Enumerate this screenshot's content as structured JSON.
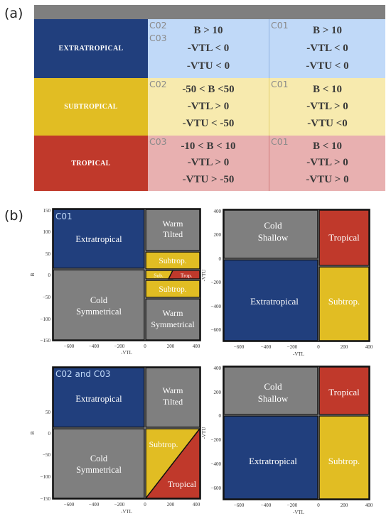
{
  "panel_a_label": "(a)",
  "panel_b_label": "(b)",
  "colors": {
    "extratropical": "#213f7d",
    "subtropical": "#e1bd23",
    "tropical": "#c0392b",
    "cold": "#7f7f7f",
    "ext_bg": "#c0d9f8",
    "sub_bg": "#f7eaae",
    "trop_bg": "#e8b0b0"
  },
  "table": {
    "rows": [
      {
        "label": "EXTRATROPICAL",
        "c2_codes": [
          "C02",
          "C03"
        ],
        "c2_conditions": [
          "B > 10",
          "-VTL < 0",
          "-VTU < 0"
        ],
        "c1_code": "C01",
        "c1_conditions": [
          "B > 10",
          "-VTL < 0",
          "-VTU < 0"
        ]
      },
      {
        "label": "SUBTROPICAL",
        "c2_codes": [
          "C02"
        ],
        "c2_conditions": [
          "-50 < B <50",
          "-VTL > 0",
          "-VTU < -50"
        ],
        "c1_code": "C01",
        "c1_conditions": [
          "B < 10",
          "-VTL > 0",
          "-VTU <0"
        ]
      },
      {
        "label": "TROPICAL",
        "c2_codes": [
          "C03"
        ],
        "c2_conditions": [
          "-10 < B < 10",
          "-VTL > 0",
          "-VTU > -50"
        ],
        "c1_code": "C01",
        "c1_conditions": [
          "B < 10",
          "-VTL > 0",
          "-VTU > 0"
        ]
      }
    ]
  },
  "plots": {
    "left_top": {
      "tag": "C01",
      "xlabel": "-VTL",
      "ylabel": "B",
      "xticks": [
        "−600",
        "−400",
        "−200",
        "0",
        "200",
        "400"
      ],
      "yticks": [
        "150",
        "100",
        "50",
        "0",
        "−50",
        "−100",
        "−150"
      ],
      "regions": {
        "extratropical": "Extratropical",
        "warm_tilted_1": "Warm",
        "warm_tilted_2": "Tilted",
        "subtrop_top": "Subtrop.",
        "sub_small": "Sub.",
        "trop_small": "Trop.",
        "subtrop_bottom": "Subtrop.",
        "cold_sym_1": "Cold",
        "cold_sym_2": "Symmetrical",
        "warm_sym_1": "Warm",
        "warm_sym_2": "Symmetrical"
      }
    },
    "right_top": {
      "xlabel": "-VTL",
      "ylabel": "-VTU",
      "xticks": [
        "−600",
        "−400",
        "−200",
        "0",
        "200",
        "400"
      ],
      "yticks": [
        "400",
        "200",
        "0",
        "−200",
        "−400",
        "−600"
      ],
      "regions": {
        "cold_1": "Cold",
        "cold_2": "Shallow",
        "tropical": "Tropical",
        "extratropical": "Extratropical",
        "subtrop": "Subtrop."
      }
    },
    "left_bottom": {
      "tag": "C02 and C03",
      "xlabel": "-VTL",
      "ylabel": "B",
      "xticks": [
        "−600",
        "−400",
        "−200",
        "0",
        "200",
        "400"
      ],
      "yticks": [
        "50",
        "0",
        "−50",
        "−100",
        "−150"
      ],
      "regions": {
        "extratropical": "Extratropical",
        "warm_1": "Warm",
        "warm_2": "Tilted",
        "cold_1": "Cold",
        "cold_2": "Symmetrical",
        "subtrop": "Subtrop.",
        "tropical": "Tropical"
      }
    },
    "right_bottom": {
      "xlabel": "-VTL",
      "ylabel": "-VTU",
      "xticks": [
        "−600",
        "−400",
        "−200",
        "0",
        "200",
        "400"
      ],
      "yticks": [
        "400",
        "200",
        "0",
        "−200",
        "−400",
        "−600"
      ],
      "regions": {
        "cold_1": "Cold",
        "cold_2": "Shallow",
        "tropical": "Tropical",
        "extratropical": "Extratropical",
        "subtrop": "Subtrop."
      }
    }
  }
}
